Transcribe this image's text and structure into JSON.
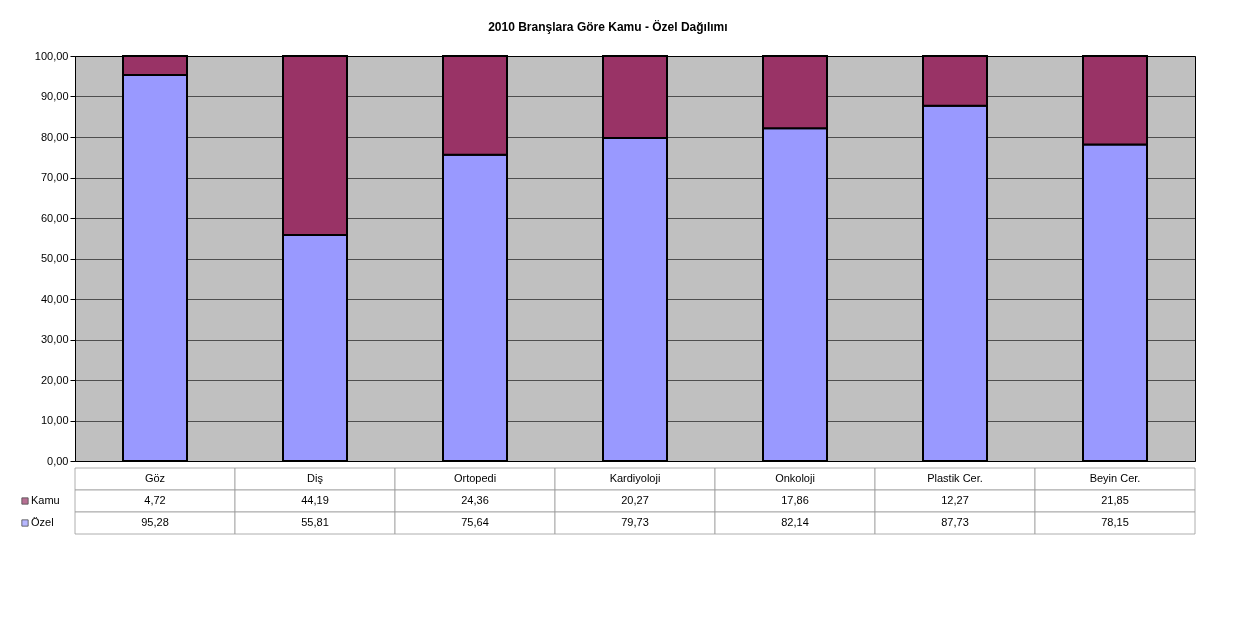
{
  "chart_data": {
    "type": "bar",
    "title": "2010 Branşlara Göre Kamu - Özel Dağılımı",
    "categories": [
      "Göz",
      "Diş",
      "Ortopedi",
      "Kardiyoloji",
      "Onkoloji",
      "Plastik Cer.",
      "Beyin Cer."
    ],
    "stacked": true,
    "series": [
      {
        "name": "Özel",
        "color": "#9999ff",
        "values": [
          95.28,
          55.81,
          75.64,
          79.73,
          82.14,
          87.73,
          78.15
        ],
        "value_labels": [
          "95,28",
          "55,81",
          "75,64",
          "79,73",
          "82,14",
          "87,73",
          "78,15"
        ]
      },
      {
        "name": "Kamu",
        "color": "#993366",
        "values": [
          4.72,
          44.19,
          24.36,
          20.27,
          17.86,
          12.27,
          21.85
        ],
        "value_labels": [
          "4,72",
          "44,19",
          "24,36",
          "20,27",
          "17,86",
          "12,27",
          "21,85"
        ]
      }
    ],
    "ylim": [
      0,
      100
    ],
    "yticks": [
      {
        "value": 0,
        "label": "0,00"
      },
      {
        "value": 10,
        "label": "10,00"
      },
      {
        "value": 20,
        "label": "20,00"
      },
      {
        "value": 30,
        "label": "30,00"
      },
      {
        "value": 40,
        "label": "40,00"
      },
      {
        "value": 50,
        "label": "50,00"
      },
      {
        "value": 60,
        "label": "60,00"
      },
      {
        "value": 70,
        "label": "70,00"
      },
      {
        "value": 80,
        "label": "80,00"
      },
      {
        "value": 90,
        "label": "90,00"
      },
      {
        "value": 100,
        "label": "100,00"
      }
    ],
    "grid": "y",
    "legend": "bottom"
  }
}
